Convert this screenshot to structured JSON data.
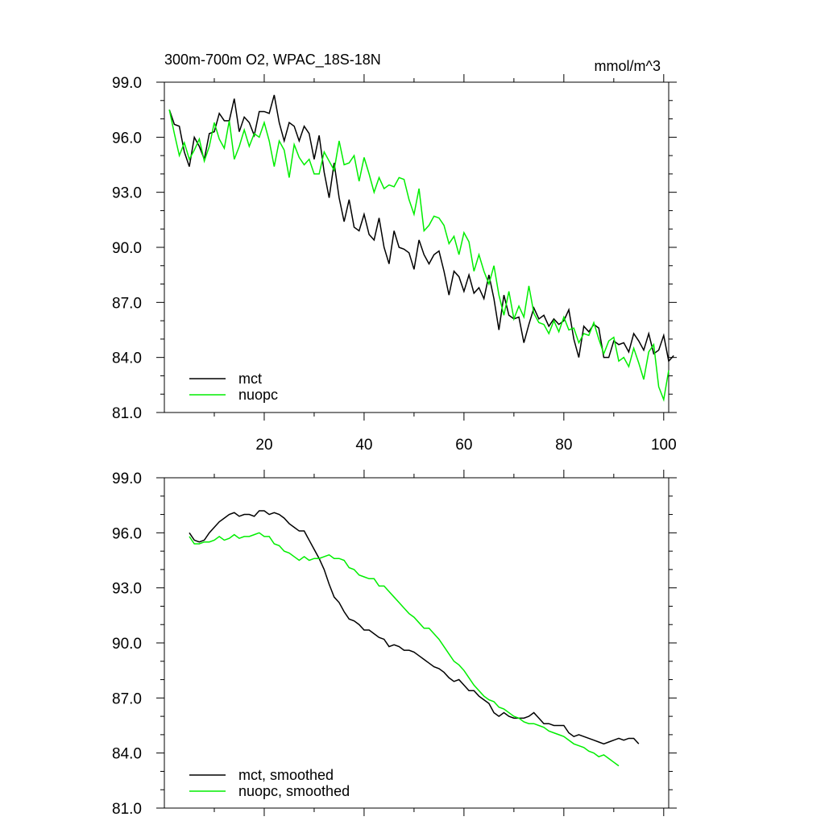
{
  "colors": {
    "mct": "#000000",
    "nuopc": "#00ee00",
    "axis": "#000000",
    "background": "#ffffff"
  },
  "chart_data": [
    {
      "type": "line",
      "title": "300m-700m O2, WPAC_18S-18N",
      "units": "mmol/m^3",
      "xlabel": "",
      "ylabel": "",
      "xlim": [
        0,
        101
      ],
      "ylim": [
        81,
        99
      ],
      "yticks": [
        "99.0",
        "96.0",
        "93.0",
        "90.0",
        "87.0",
        "84.0",
        "81.0"
      ],
      "xticks": [
        "20",
        "40",
        "60",
        "80",
        "100"
      ],
      "show_x_labels": true,
      "legend_position": "bottom-left",
      "legend": [
        "mct",
        "nuopc"
      ],
      "series": [
        {
          "name": "mct",
          "color_key": "mct",
          "x_start": 1,
          "values": [
            97.5,
            96.7,
            96.6,
            95.2,
            94.4,
            96.0,
            95.5,
            94.8,
            96.2,
            96.3,
            97.3,
            96.9,
            96.9,
            98.1,
            96.3,
            97.1,
            96.8,
            96.1,
            97.4,
            97.4,
            97.3,
            98.3,
            96.8,
            95.8,
            96.8,
            96.6,
            95.8,
            96.6,
            96.2,
            94.8,
            96.1,
            94.1,
            92.7,
            94.6,
            92.7,
            91.4,
            92.6,
            91.1,
            90.9,
            91.8,
            90.7,
            90.4,
            91.6,
            90.0,
            89.1,
            90.9,
            90.0,
            89.9,
            89.7,
            88.8,
            90.4,
            89.6,
            89.1,
            89.6,
            89.8,
            88.7,
            87.4,
            88.7,
            88.4,
            87.6,
            88.5,
            87.5,
            87.8,
            87.2,
            88.5,
            87.2,
            85.5,
            87.4,
            86.3,
            86.1,
            86.2,
            84.8,
            85.8,
            86.7,
            86.1,
            86.3,
            85.7,
            86.1,
            85.8,
            86.0,
            86.6,
            85.0,
            84.0,
            85.7,
            85.4,
            85.8,
            85.6,
            84.0,
            84.0,
            84.9,
            84.7,
            84.8,
            84.3,
            85.3,
            84.9,
            84.4,
            85.3,
            84.2,
            84.4,
            85.2,
            83.8,
            84.1
          ]
        },
        {
          "name": "nuopc",
          "color_key": "nuopc",
          "x_start": 1,
          "values": [
            97.5,
            96.2,
            95.0,
            95.7,
            94.8,
            95.3,
            95.9,
            94.7,
            95.5,
            96.8,
            95.9,
            95.4,
            96.9,
            94.8,
            95.5,
            96.4,
            95.5,
            96.2,
            96.0,
            96.8,
            95.8,
            94.4,
            95.8,
            95.3,
            93.8,
            95.6,
            94.9,
            94.5,
            94.8,
            94.0,
            94.0,
            95.2,
            94.7,
            94.2,
            95.8,
            94.5,
            94.6,
            95.0,
            93.6,
            94.9,
            94.0,
            93.0,
            93.8,
            93.2,
            93.4,
            93.3,
            93.8,
            93.7,
            92.6,
            91.8,
            93.2,
            90.9,
            91.2,
            91.7,
            91.6,
            91.2,
            90.2,
            90.6,
            89.6,
            90.8,
            90.3,
            88.7,
            89.6,
            88.7,
            88.0,
            89.0,
            87.4,
            86.3,
            87.6,
            86.1,
            86.8,
            86.2,
            87.9,
            86.4,
            85.9,
            85.8,
            85.3,
            86.0,
            85.4,
            86.2,
            85.5,
            85.6,
            84.8,
            85.3,
            85.2,
            85.9,
            85.0,
            84.2,
            84.9,
            85.1,
            83.8,
            84.0,
            83.5,
            84.5,
            83.7,
            82.8,
            84.3,
            84.7,
            82.4,
            81.7,
            83.3
          ]
        }
      ]
    },
    {
      "type": "line",
      "title": "",
      "units": "",
      "xlabel": "",
      "ylabel": "",
      "xlim": [
        0,
        101
      ],
      "ylim": [
        81,
        99
      ],
      "yticks": [
        "99.0",
        "96.0",
        "93.0",
        "90.0",
        "87.0",
        "84.0",
        "81.0"
      ],
      "xticks": [
        "20",
        "40",
        "60",
        "80",
        "100"
      ],
      "show_x_labels": false,
      "legend_position": "bottom-left",
      "legend": [
        "mct, smoothed",
        "nuopc, smoothed"
      ],
      "series": [
        {
          "name": "mct, smoothed",
          "color_key": "mct",
          "x_start": 5,
          "values": [
            96.0,
            95.6,
            95.5,
            95.6,
            96.0,
            96.3,
            96.6,
            96.8,
            97.0,
            97.1,
            96.9,
            97.0,
            97.0,
            96.9,
            97.2,
            97.2,
            97.0,
            97.1,
            97.0,
            96.8,
            96.5,
            96.3,
            96.1,
            96.1,
            95.6,
            95.1,
            94.6,
            94.0,
            93.2,
            92.5,
            92.2,
            91.7,
            91.3,
            91.2,
            91.0,
            90.7,
            90.7,
            90.5,
            90.3,
            90.2,
            89.8,
            89.9,
            89.8,
            89.6,
            89.6,
            89.5,
            89.3,
            89.1,
            88.9,
            88.7,
            88.6,
            88.4,
            88.1,
            87.9,
            88.0,
            87.7,
            87.4,
            87.4,
            87.1,
            86.9,
            86.7,
            86.2,
            86.0,
            86.2,
            86.0,
            85.9,
            85.9,
            85.9,
            86.0,
            86.2,
            85.9,
            85.6,
            85.6,
            85.5,
            85.5,
            85.5,
            85.1,
            84.9,
            85.0,
            84.9,
            84.8,
            84.7,
            84.6,
            84.5,
            84.6,
            84.7,
            84.8,
            84.7,
            84.8,
            84.8,
            84.5
          ]
        },
        {
          "name": "nuopc, smoothed",
          "color_key": "nuopc",
          "x_start": 5,
          "values": [
            95.8,
            95.4,
            95.4,
            95.5,
            95.5,
            95.6,
            95.8,
            95.6,
            95.7,
            95.9,
            95.7,
            95.8,
            95.8,
            95.9,
            96.0,
            95.8,
            95.8,
            95.4,
            95.3,
            95.0,
            94.9,
            94.7,
            94.5,
            94.7,
            94.5,
            94.6,
            94.6,
            94.7,
            94.8,
            94.6,
            94.6,
            94.5,
            94.1,
            94.0,
            93.7,
            93.6,
            93.5,
            93.5,
            93.1,
            93.1,
            92.8,
            92.5,
            92.2,
            91.9,
            91.6,
            91.4,
            91.1,
            90.8,
            90.8,
            90.5,
            90.2,
            89.8,
            89.4,
            89.0,
            88.8,
            88.5,
            88.1,
            87.7,
            87.4,
            87.1,
            86.9,
            86.8,
            86.5,
            86.4,
            86.2,
            86.0,
            85.9,
            85.7,
            85.6,
            85.6,
            85.5,
            85.4,
            85.2,
            85.1,
            85.0,
            84.9,
            84.7,
            84.5,
            84.4,
            84.3,
            84.1,
            84.0,
            83.8,
            83.9,
            83.7,
            83.5,
            83.3
          ]
        }
      ]
    }
  ]
}
